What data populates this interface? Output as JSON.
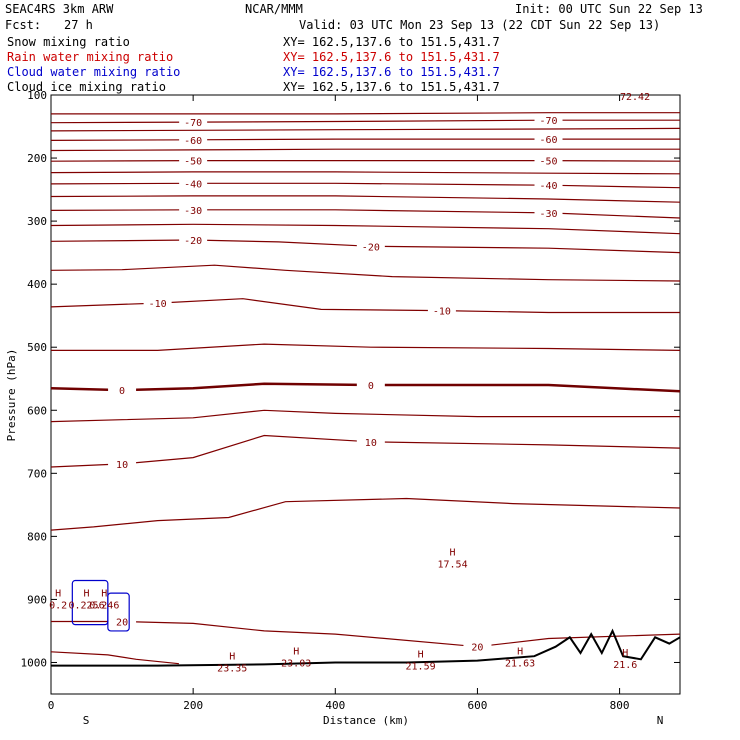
{
  "header": {
    "title": "SEAC4RS  3km ARW",
    "center": "NCAR/MMM",
    "init": "Init: 00 UTC Sun 22 Sep 13",
    "fcst_label": "Fcst:",
    "fcst_value": "27 h",
    "valid": "Valid: 03 UTC Mon 23 Sep 13 (22 CDT Sun 22 Sep 13)"
  },
  "fields": [
    {
      "label": "Snow mixing ratio",
      "xy": "XY= 162.5,137.6 to 151.5,431.7",
      "color": "#000000"
    },
    {
      "label": "Rain water mixing ratio",
      "xy": "XY= 162.5,137.6 to 151.5,431.7",
      "color": "#cc0000"
    },
    {
      "label": "Cloud water mixing ratio",
      "xy": "XY= 162.5,137.6 to 151.5,431.7",
      "color": "#0000cc"
    },
    {
      "label": "Cloud ice mixing ratio",
      "xy": "XY= 162.5,137.6 to 151.5,431.7",
      "color": "#000000"
    }
  ],
  "colors": {
    "contour": "#800000",
    "contour_dark": "#700000",
    "terrain": "#000000",
    "cloud": "#0000cc"
  },
  "chart_data": {
    "type": "line",
    "subtype": "vertical cross-section contour (temperature °C)",
    "xlabel": "Distance (km)",
    "ylabel": "Pressure (hPa)",
    "xlim": [
      0,
      885
    ],
    "ylim": [
      1050,
      100
    ],
    "yscale": "linear",
    "x_ticks": [
      "0",
      "200",
      "400",
      "600",
      "800"
    ],
    "y_ticks": [
      "100",
      "200",
      "300",
      "400",
      "500",
      "600",
      "700",
      "800",
      "900",
      "1000"
    ],
    "x_end_labels": {
      "left": "S",
      "right": "N"
    },
    "contour_interval": 5,
    "contours": [
      {
        "level": -75,
        "points": [
          [
            0,
            130
          ],
          [
            150,
            130
          ],
          [
            400,
            130
          ],
          [
            700,
            128
          ],
          [
            885,
            128
          ]
        ]
      },
      {
        "level": -70,
        "points": [
          [
            0,
            144
          ],
          [
            200,
            143
          ],
          [
            400,
            142
          ],
          [
            700,
            140
          ],
          [
            885,
            140
          ]
        ]
      },
      {
        "level": -65,
        "points": [
          [
            0,
            157
          ],
          [
            200,
            156
          ],
          [
            400,
            155
          ],
          [
            700,
            154
          ],
          [
            885,
            153
          ]
        ]
      },
      {
        "level": -60,
        "points": [
          [
            0,
            172
          ],
          [
            200,
            171
          ],
          [
            400,
            170
          ],
          [
            700,
            170
          ],
          [
            885,
            170
          ]
        ]
      },
      {
        "level": -55,
        "points": [
          [
            0,
            188
          ],
          [
            200,
            187
          ],
          [
            400,
            186
          ],
          [
            700,
            186
          ],
          [
            885,
            186
          ]
        ]
      },
      {
        "level": -50,
        "points": [
          [
            0,
            205
          ],
          [
            200,
            204
          ],
          [
            400,
            204
          ],
          [
            700,
            204
          ],
          [
            885,
            205
          ]
        ]
      },
      {
        "level": -45,
        "points": [
          [
            0,
            223
          ],
          [
            200,
            222
          ],
          [
            400,
            222
          ],
          [
            700,
            224
          ],
          [
            885,
            225
          ]
        ]
      },
      {
        "level": -40,
        "points": [
          [
            0,
            241
          ],
          [
            200,
            240
          ],
          [
            400,
            240
          ],
          [
            700,
            243
          ],
          [
            885,
            247
          ]
        ]
      },
      {
        "level": -35,
        "points": [
          [
            0,
            261
          ],
          [
            200,
            260
          ],
          [
            400,
            260
          ],
          [
            700,
            265
          ],
          [
            885,
            270
          ]
        ]
      },
      {
        "level": -30,
        "points": [
          [
            0,
            283
          ],
          [
            200,
            282
          ],
          [
            400,
            282
          ],
          [
            700,
            287
          ],
          [
            885,
            295
          ]
        ]
      },
      {
        "level": -25,
        "points": [
          [
            0,
            307
          ],
          [
            200,
            305
          ],
          [
            400,
            307
          ],
          [
            700,
            312
          ],
          [
            885,
            320
          ]
        ]
      },
      {
        "level": -20,
        "points": [
          [
            0,
            332
          ],
          [
            200,
            330
          ],
          [
            320,
            333
          ],
          [
            450,
            340
          ],
          [
            700,
            343
          ],
          [
            885,
            350
          ]
        ]
      },
      {
        "level": -15,
        "points": [
          [
            0,
            378
          ],
          [
            100,
            377
          ],
          [
            230,
            370
          ],
          [
            330,
            378
          ],
          [
            480,
            388
          ],
          [
            700,
            393
          ],
          [
            885,
            395
          ]
        ]
      },
      {
        "level": -10,
        "points": [
          [
            0,
            436
          ],
          [
            150,
            430
          ],
          [
            270,
            423
          ],
          [
            380,
            440
          ],
          [
            550,
            442
          ],
          [
            700,
            445
          ],
          [
            885,
            445
          ]
        ]
      },
      {
        "level": -5,
        "points": [
          [
            0,
            505
          ],
          [
            150,
            505
          ],
          [
            300,
            495
          ],
          [
            450,
            500
          ],
          [
            700,
            502
          ],
          [
            885,
            505
          ]
        ]
      },
      {
        "level": 0,
        "points": [
          [
            0,
            565
          ],
          [
            100,
            568
          ],
          [
            200,
            565
          ],
          [
            300,
            558
          ],
          [
            450,
            560
          ],
          [
            700,
            560
          ],
          [
            885,
            570
          ]
        ]
      },
      {
        "level": 5,
        "points": [
          [
            0,
            618
          ],
          [
            100,
            615
          ],
          [
            200,
            612
          ],
          [
            300,
            600
          ],
          [
            400,
            605
          ],
          [
            600,
            610
          ],
          [
            885,
            610
          ]
        ]
      },
      {
        "level": 10,
        "points": [
          [
            0,
            690
          ],
          [
            100,
            685
          ],
          [
            200,
            675
          ],
          [
            300,
            640
          ],
          [
            450,
            650
          ],
          [
            700,
            655
          ],
          [
            885,
            660
          ]
        ]
      },
      {
        "level": 15,
        "points": [
          [
            0,
            790
          ],
          [
            60,
            785
          ],
          [
            150,
            775
          ],
          [
            250,
            770
          ],
          [
            330,
            745
          ],
          [
            500,
            740
          ],
          [
            650,
            748
          ],
          [
            885,
            755
          ]
        ]
      },
      {
        "level": 20,
        "points": [
          [
            0,
            935
          ],
          [
            100,
            935
          ],
          [
            200,
            938
          ],
          [
            300,
            950
          ],
          [
            400,
            955
          ],
          [
            600,
            975
          ],
          [
            700,
            962
          ],
          [
            885,
            955
          ]
        ]
      },
      {
        "level": 25,
        "points": [
          [
            0,
            983
          ],
          [
            80,
            988
          ],
          [
            120,
            995
          ],
          [
            180,
            1002
          ]
        ]
      }
    ],
    "terrain_points": [
      [
        0,
        1005
      ],
      [
        150,
        1005
      ],
      [
        300,
        1003
      ],
      [
        400,
        1000
      ],
      [
        500,
        1000
      ],
      [
        600,
        997
      ],
      [
        680,
        990
      ],
      [
        710,
        975
      ],
      [
        730,
        960
      ],
      [
        745,
        985
      ],
      [
        760,
        955
      ],
      [
        775,
        985
      ],
      [
        790,
        950
      ],
      [
        805,
        990
      ],
      [
        830,
        995
      ],
      [
        850,
        960
      ],
      [
        870,
        970
      ],
      [
        885,
        960
      ]
    ],
    "extrema": [
      {
        "marker": "H",
        "value": "17.54",
        "x": 565,
        "p": 830
      },
      {
        "marker": "H",
        "value": "23.35",
        "x": 255,
        "p": 995
      },
      {
        "marker": "H",
        "value": "23.03",
        "x": 345,
        "p": 987
      },
      {
        "marker": "H",
        "value": "21.59",
        "x": 520,
        "p": 992
      },
      {
        "marker": "H",
        "value": "21.63",
        "x": 660,
        "p": 987
      },
      {
        "marker": "H",
        "value": "21.6",
        "x": 808,
        "p": 990
      },
      {
        "marker": "H",
        "value": "0.2",
        "x": 10,
        "p": 895
      },
      {
        "marker": "H",
        "value": "0.2256",
        "x": 50,
        "p": 895
      },
      {
        "marker": "H",
        "value": "0.246",
        "x": 75,
        "p": 895
      }
    ],
    "corner_label": "72.42",
    "cloud_water_regions": [
      {
        "x": [
          30,
          80
        ],
        "p": [
          870,
          940
        ]
      },
      {
        "x": [
          80,
          110
        ],
        "p": [
          890,
          950
        ]
      }
    ]
  }
}
